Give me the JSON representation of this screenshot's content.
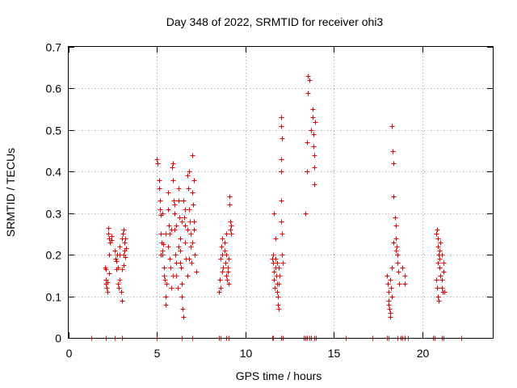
{
  "chart_data": {
    "type": "scatter",
    "title": "Day 348 of 2022, SRMTID for receiver ohi3",
    "xlabel": "GPS time / hours",
    "ylabel": "SRMTID / TECUs",
    "xlim": [
      0,
      24
    ],
    "ylim": [
      0,
      0.7
    ],
    "xticks": [
      0,
      5,
      10,
      15,
      20
    ],
    "xtick_labels": [
      "0",
      "5",
      "10",
      "15",
      "20"
    ],
    "yticks": [
      0,
      0.1,
      0.2,
      0.3,
      0.4,
      0.5,
      0.6,
      0.7
    ],
    "ytick_labels": [
      "0",
      "0.1",
      "0.2",
      "0.3",
      "0.4",
      "0.5",
      "0.6",
      "0.7"
    ],
    "grid": true,
    "marker": "+",
    "color": "#e00000",
    "series": [
      {
        "name": "SRMTID",
        "points": [
          [
            1.3,
            0
          ],
          [
            2.1,
            0
          ],
          [
            2.6,
            0
          ],
          [
            3.0,
            0
          ],
          [
            5.0,
            0
          ],
          [
            6.4,
            0
          ],
          [
            7.0,
            0
          ],
          [
            8.5,
            0
          ],
          [
            8.6,
            0
          ],
          [
            8.9,
            0
          ],
          [
            9.05,
            0
          ],
          [
            11.5,
            0
          ],
          [
            11.55,
            0
          ],
          [
            12.0,
            0
          ],
          [
            12.1,
            0
          ],
          [
            13.3,
            0
          ],
          [
            13.4,
            0
          ],
          [
            13.5,
            0
          ],
          [
            13.6,
            0
          ],
          [
            13.7,
            0
          ],
          [
            13.9,
            0
          ],
          [
            14.0,
            0
          ],
          [
            15.7,
            0
          ],
          [
            17.2,
            0
          ],
          [
            18.0,
            0
          ],
          [
            18.1,
            0
          ],
          [
            18.6,
            0
          ],
          [
            18.8,
            0
          ],
          [
            18.9,
            0
          ],
          [
            19.0,
            0
          ],
          [
            19.2,
            0
          ],
          [
            20.6,
            0
          ],
          [
            20.7,
            0
          ],
          [
            21.1,
            0
          ],
          [
            21.2,
            0
          ],
          [
            22.2,
            0
          ],
          [
            2.05,
            0.17
          ],
          [
            2.1,
            0.165
          ],
          [
            2.1,
            0.14
          ],
          [
            2.12,
            0.13
          ],
          [
            2.15,
            0.12
          ],
          [
            2.18,
            0.11
          ],
          [
            2.2,
            0.135
          ],
          [
            2.22,
            0.25
          ],
          [
            2.25,
            0.265
          ],
          [
            2.28,
            0.24
          ],
          [
            2.3,
            0.2
          ],
          [
            2.3,
            0.155
          ],
          [
            2.35,
            0.23
          ],
          [
            2.4,
            0.245
          ],
          [
            2.42,
            0.235
          ],
          [
            2.6,
            0.21
          ],
          [
            2.65,
            0.19
          ],
          [
            2.7,
            0.185
          ],
          [
            2.75,
            0.2
          ],
          [
            2.8,
            0.13
          ],
          [
            2.85,
            0.12
          ],
          [
            2.9,
            0.22
          ],
          [
            2.9,
            0.14
          ],
          [
            2.95,
            0.11
          ],
          [
            3.0,
            0.09
          ],
          [
            3.0,
            0.24
          ],
          [
            3.05,
            0.25
          ],
          [
            3.1,
            0.26
          ],
          [
            3.1,
            0.2
          ],
          [
            3.15,
            0.23
          ],
          [
            3.15,
            0.21
          ],
          [
            3.2,
            0.195
          ],
          [
            3.2,
            0.24
          ],
          [
            3.25,
            0.215
          ],
          [
            2.7,
            0.165
          ],
          [
            2.8,
            0.17
          ],
          [
            3.0,
            0.165
          ],
          [
            3.1,
            0.175
          ],
          [
            2.9,
            0.2
          ],
          [
            5.0,
            0.43
          ],
          [
            5.05,
            0.42
          ],
          [
            5.1,
            0.38
          ],
          [
            5.1,
            0.36
          ],
          [
            5.15,
            0.33
          ],
          [
            5.15,
            0.31
          ],
          [
            5.2,
            0.295
          ],
          [
            5.2,
            0.25
          ],
          [
            5.25,
            0.23
          ],
          [
            5.3,
            0.21
          ],
          [
            5.3,
            0.2
          ],
          [
            5.35,
            0.225
          ],
          [
            5.4,
            0.17
          ],
          [
            5.4,
            0.15
          ],
          [
            5.45,
            0.14
          ],
          [
            5.5,
            0.08
          ],
          [
            5.5,
            0.1
          ],
          [
            5.55,
            0.13
          ],
          [
            5.6,
            0.35
          ],
          [
            5.6,
            0.31
          ],
          [
            5.65,
            0.27
          ],
          [
            5.7,
            0.25
          ],
          [
            5.7,
            0.19
          ],
          [
            5.75,
            0.17
          ],
          [
            5.8,
            0.12
          ],
          [
            5.85,
            0.41
          ],
          [
            5.9,
            0.42
          ],
          [
            5.9,
            0.38
          ],
          [
            5.95,
            0.33
          ],
          [
            6.0,
            0.3
          ],
          [
            6.0,
            0.26
          ],
          [
            6.05,
            0.2
          ],
          [
            6.1,
            0.18
          ],
          [
            6.1,
            0.15
          ],
          [
            6.15,
            0.12
          ],
          [
            6.2,
            0.36
          ],
          [
            6.2,
            0.33
          ],
          [
            6.25,
            0.29
          ],
          [
            6.3,
            0.24
          ],
          [
            6.3,
            0.21
          ],
          [
            6.35,
            0.17
          ],
          [
            6.4,
            0.13
          ],
          [
            6.4,
            0.1
          ],
          [
            6.45,
            0.07
          ],
          [
            6.5,
            0.05
          ],
          [
            6.5,
            0.33
          ],
          [
            6.55,
            0.29
          ],
          [
            6.6,
            0.27
          ],
          [
            6.6,
            0.23
          ],
          [
            6.65,
            0.19
          ],
          [
            6.7,
            0.15
          ],
          [
            6.7,
            0.39
          ],
          [
            6.75,
            0.36
          ],
          [
            6.8,
            0.4
          ],
          [
            6.8,
            0.31
          ],
          [
            6.85,
            0.28
          ],
          [
            6.9,
            0.25
          ],
          [
            6.9,
            0.22
          ],
          [
            6.95,
            0.18
          ],
          [
            7.0,
            0.44
          ],
          [
            7.0,
            0.35
          ],
          [
            7.05,
            0.32
          ],
          [
            7.1,
            0.28
          ],
          [
            7.1,
            0.26
          ],
          [
            7.15,
            0.2
          ],
          [
            7.2,
            0.16
          ],
          [
            5.3,
            0.3
          ],
          [
            5.6,
            0.22
          ],
          [
            5.8,
            0.26
          ],
          [
            6.0,
            0.32
          ],
          [
            6.2,
            0.22
          ],
          [
            6.4,
            0.28
          ],
          [
            6.6,
            0.31
          ],
          [
            6.8,
            0.19
          ],
          [
            7.0,
            0.23
          ],
          [
            5.5,
            0.25
          ],
          [
            5.9,
            0.15
          ],
          [
            6.3,
            0.18
          ],
          [
            6.7,
            0.26
          ],
          [
            7.1,
            0.38
          ],
          [
            5.2,
            0.2
          ],
          [
            6.1,
            0.27
          ],
          [
            8.5,
            0.11
          ],
          [
            8.55,
            0.14
          ],
          [
            8.6,
            0.12
          ],
          [
            8.6,
            0.19
          ],
          [
            8.65,
            0.22
          ],
          [
            8.7,
            0.24
          ],
          [
            8.7,
            0.2
          ],
          [
            8.75,
            0.17
          ],
          [
            8.8,
            0.23
          ],
          [
            8.8,
            0.21
          ],
          [
            8.85,
            0.18
          ],
          [
            8.9,
            0.2
          ],
          [
            8.9,
            0.15
          ],
          [
            8.95,
            0.14
          ],
          [
            9.0,
            0.17
          ],
          [
            9.0,
            0.16
          ],
          [
            9.05,
            0.13
          ],
          [
            9.1,
            0.34
          ],
          [
            9.1,
            0.32
          ],
          [
            9.15,
            0.28
          ],
          [
            9.15,
            0.26
          ],
          [
            9.2,
            0.25
          ],
          [
            9.2,
            0.27
          ],
          [
            8.7,
            0.16
          ],
          [
            8.9,
            0.25
          ],
          [
            9.05,
            0.19
          ],
          [
            11.5,
            0.19
          ],
          [
            11.55,
            0.18
          ],
          [
            11.6,
            0.16
          ],
          [
            11.6,
            0.14
          ],
          [
            11.65,
            0.12
          ],
          [
            11.7,
            0.19
          ],
          [
            11.7,
            0.17
          ],
          [
            11.75,
            0.15
          ],
          [
            11.8,
            0.13
          ],
          [
            11.8,
            0.11
          ],
          [
            11.85,
            0.1
          ],
          [
            11.85,
            0.08
          ],
          [
            11.9,
            0.07
          ],
          [
            11.9,
            0.17
          ],
          [
            11.95,
            0.15
          ],
          [
            12.0,
            0.33
          ],
          [
            12.0,
            0.28
          ],
          [
            12.05,
            0.25
          ],
          [
            12.05,
            0.2
          ],
          [
            12.1,
            0.18
          ],
          [
            12.0,
            0.4
          ],
          [
            12.0,
            0.43
          ],
          [
            12.05,
            0.48
          ],
          [
            12.0,
            0.51
          ],
          [
            12.0,
            0.53
          ],
          [
            11.6,
            0.3
          ],
          [
            11.7,
            0.24
          ],
          [
            11.55,
            0.2
          ],
          [
            11.8,
            0.18
          ],
          [
            11.9,
            0.13
          ],
          [
            13.4,
            0.3
          ],
          [
            13.5,
            0.4
          ],
          [
            13.5,
            0.47
          ],
          [
            13.55,
            0.59
          ],
          [
            13.55,
            0.63
          ],
          [
            13.6,
            0.62
          ],
          [
            13.7,
            0.5
          ],
          [
            13.8,
            0.55
          ],
          [
            13.8,
            0.53
          ],
          [
            13.85,
            0.49
          ],
          [
            13.85,
            0.46
          ],
          [
            13.9,
            0.44
          ],
          [
            13.9,
            0.41
          ],
          [
            13.9,
            0.37
          ],
          [
            13.95,
            0.52
          ],
          [
            18.0,
            0.15
          ],
          [
            18.05,
            0.13
          ],
          [
            18.1,
            0.11
          ],
          [
            18.1,
            0.09
          ],
          [
            18.15,
            0.07
          ],
          [
            18.2,
            0.06
          ],
          [
            18.2,
            0.05
          ],
          [
            18.25,
            0.12
          ],
          [
            18.3,
            0.1
          ],
          [
            18.3,
            0.17
          ],
          [
            18.3,
            0.51
          ],
          [
            18.35,
            0.45
          ],
          [
            18.4,
            0.42
          ],
          [
            18.4,
            0.34
          ],
          [
            18.45,
            0.29
          ],
          [
            18.5,
            0.27
          ],
          [
            18.5,
            0.24
          ],
          [
            18.55,
            0.22
          ],
          [
            18.6,
            0.2
          ],
          [
            18.6,
            0.18
          ],
          [
            18.65,
            0.16
          ],
          [
            18.7,
            0.13
          ],
          [
            18.9,
            0.17
          ],
          [
            19.0,
            0.15
          ],
          [
            19.0,
            0.13
          ],
          [
            18.4,
            0.23
          ],
          [
            18.5,
            0.21
          ],
          [
            18.2,
            0.14
          ],
          [
            18.1,
            0.08
          ],
          [
            20.8,
            0.25
          ],
          [
            20.85,
            0.26
          ],
          [
            20.9,
            0.24
          ],
          [
            20.9,
            0.22
          ],
          [
            20.95,
            0.2
          ],
          [
            21.0,
            0.19
          ],
          [
            21.0,
            0.17
          ],
          [
            21.05,
            0.15
          ],
          [
            21.1,
            0.14
          ],
          [
            21.1,
            0.12
          ],
          [
            21.15,
            0.11
          ],
          [
            21.2,
            0.18
          ],
          [
            21.2,
            0.16
          ],
          [
            21.25,
            0.11
          ],
          [
            20.8,
            0.14
          ],
          [
            20.85,
            0.12
          ],
          [
            20.9,
            0.1
          ],
          [
            20.95,
            0.09
          ],
          [
            21.0,
            0.21
          ],
          [
            21.1,
            0.2
          ],
          [
            20.9,
            0.18
          ],
          [
            21.05,
            0.23
          ]
        ]
      }
    ]
  }
}
